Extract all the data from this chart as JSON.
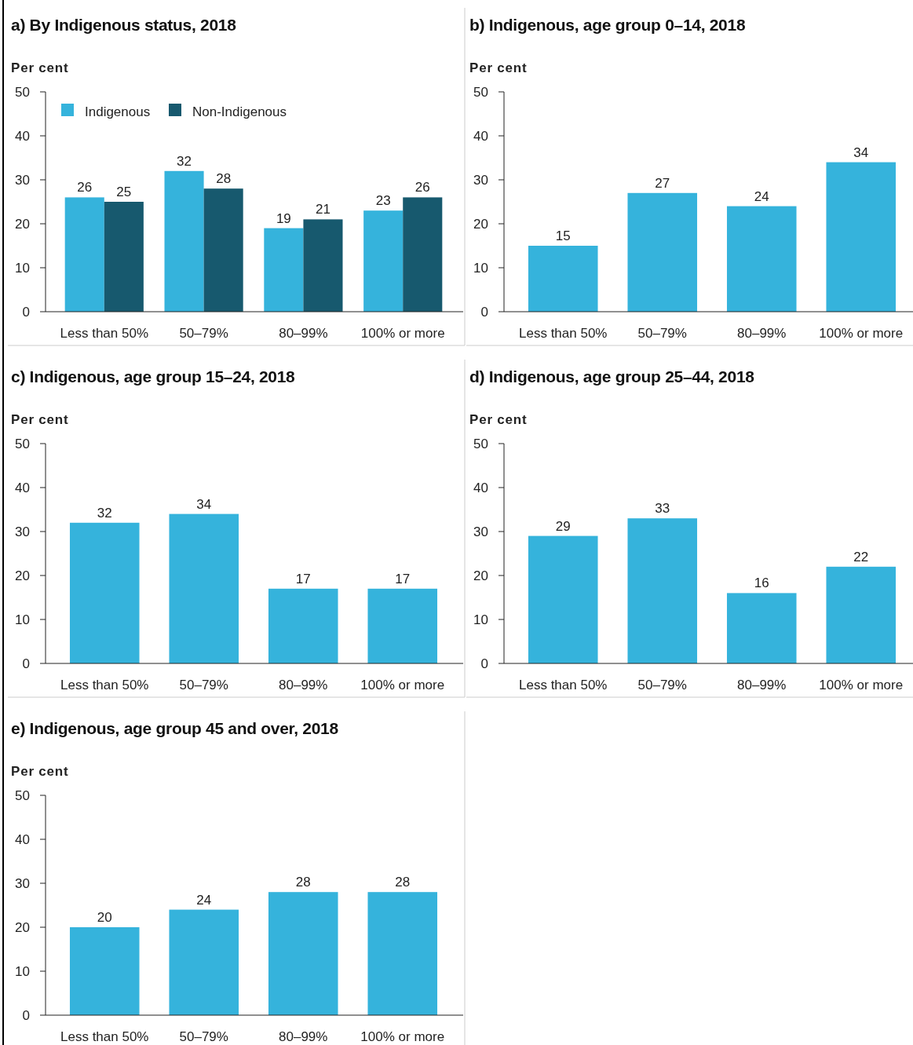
{
  "chart_data": [
    {
      "type": "bar",
      "title": "a) By Indigenous status, 2018",
      "ylabel": "Per cent",
      "categories": [
        "Less than 50%",
        "50–79%",
        "80–99%",
        "100% or more"
      ],
      "series": [
        {
          "name": "Indigenous",
          "color": "#35b3dc",
          "values": [
            26,
            32,
            19,
            23
          ]
        },
        {
          "name": "Non-Indigenous",
          "color": "#17596e",
          "values": [
            25,
            28,
            21,
            26
          ]
        }
      ],
      "ylim": [
        0,
        50
      ],
      "yticks": [
        0,
        10,
        20,
        30,
        40,
        50
      ],
      "data_labels": true,
      "legend": "top left"
    },
    {
      "type": "bar",
      "title": "b) Indigenous, age group 0–14, 2018",
      "ylabel": "Per cent",
      "categories": [
        "Less than 50%",
        "50–79%",
        "80–99%",
        "100% or more"
      ],
      "values": [
        15,
        27,
        24,
        34
      ],
      "color": "#35b3dc",
      "ylim": [
        0,
        50
      ],
      "yticks": [
        0,
        10,
        20,
        30,
        40,
        50
      ],
      "data_labels": true
    },
    {
      "type": "bar",
      "title": "c) Indigenous, age group 15–24, 2018",
      "ylabel": "Per cent",
      "categories": [
        "Less than 50%",
        "50–79%",
        "80–99%",
        "100% or more"
      ],
      "values": [
        32,
        34,
        17,
        17
      ],
      "color": "#35b3dc",
      "ylim": [
        0,
        50
      ],
      "yticks": [
        0,
        10,
        20,
        30,
        40,
        50
      ],
      "data_labels": true
    },
    {
      "type": "bar",
      "title": "d) Indigenous, age group 25–44, 2018",
      "ylabel": "Per cent",
      "categories": [
        "Less than 50%",
        "50–79%",
        "80–99%",
        "100% or more"
      ],
      "values": [
        29,
        33,
        16,
        22
      ],
      "color": "#35b3dc",
      "ylim": [
        0,
        50
      ],
      "yticks": [
        0,
        10,
        20,
        30,
        40,
        50
      ],
      "data_labels": true
    },
    {
      "type": "bar",
      "title": "e) Indigenous, age group 45 and over, 2018",
      "ylabel": "Per cent",
      "categories": [
        "Less than 50%",
        "50–79%",
        "80–99%",
        "100% or more"
      ],
      "values": [
        20,
        24,
        28,
        28
      ],
      "color": "#35b3dc",
      "ylim": [
        0,
        50
      ],
      "yticks": [
        0,
        10,
        20,
        30,
        40,
        50
      ],
      "data_labels": true
    }
  ]
}
